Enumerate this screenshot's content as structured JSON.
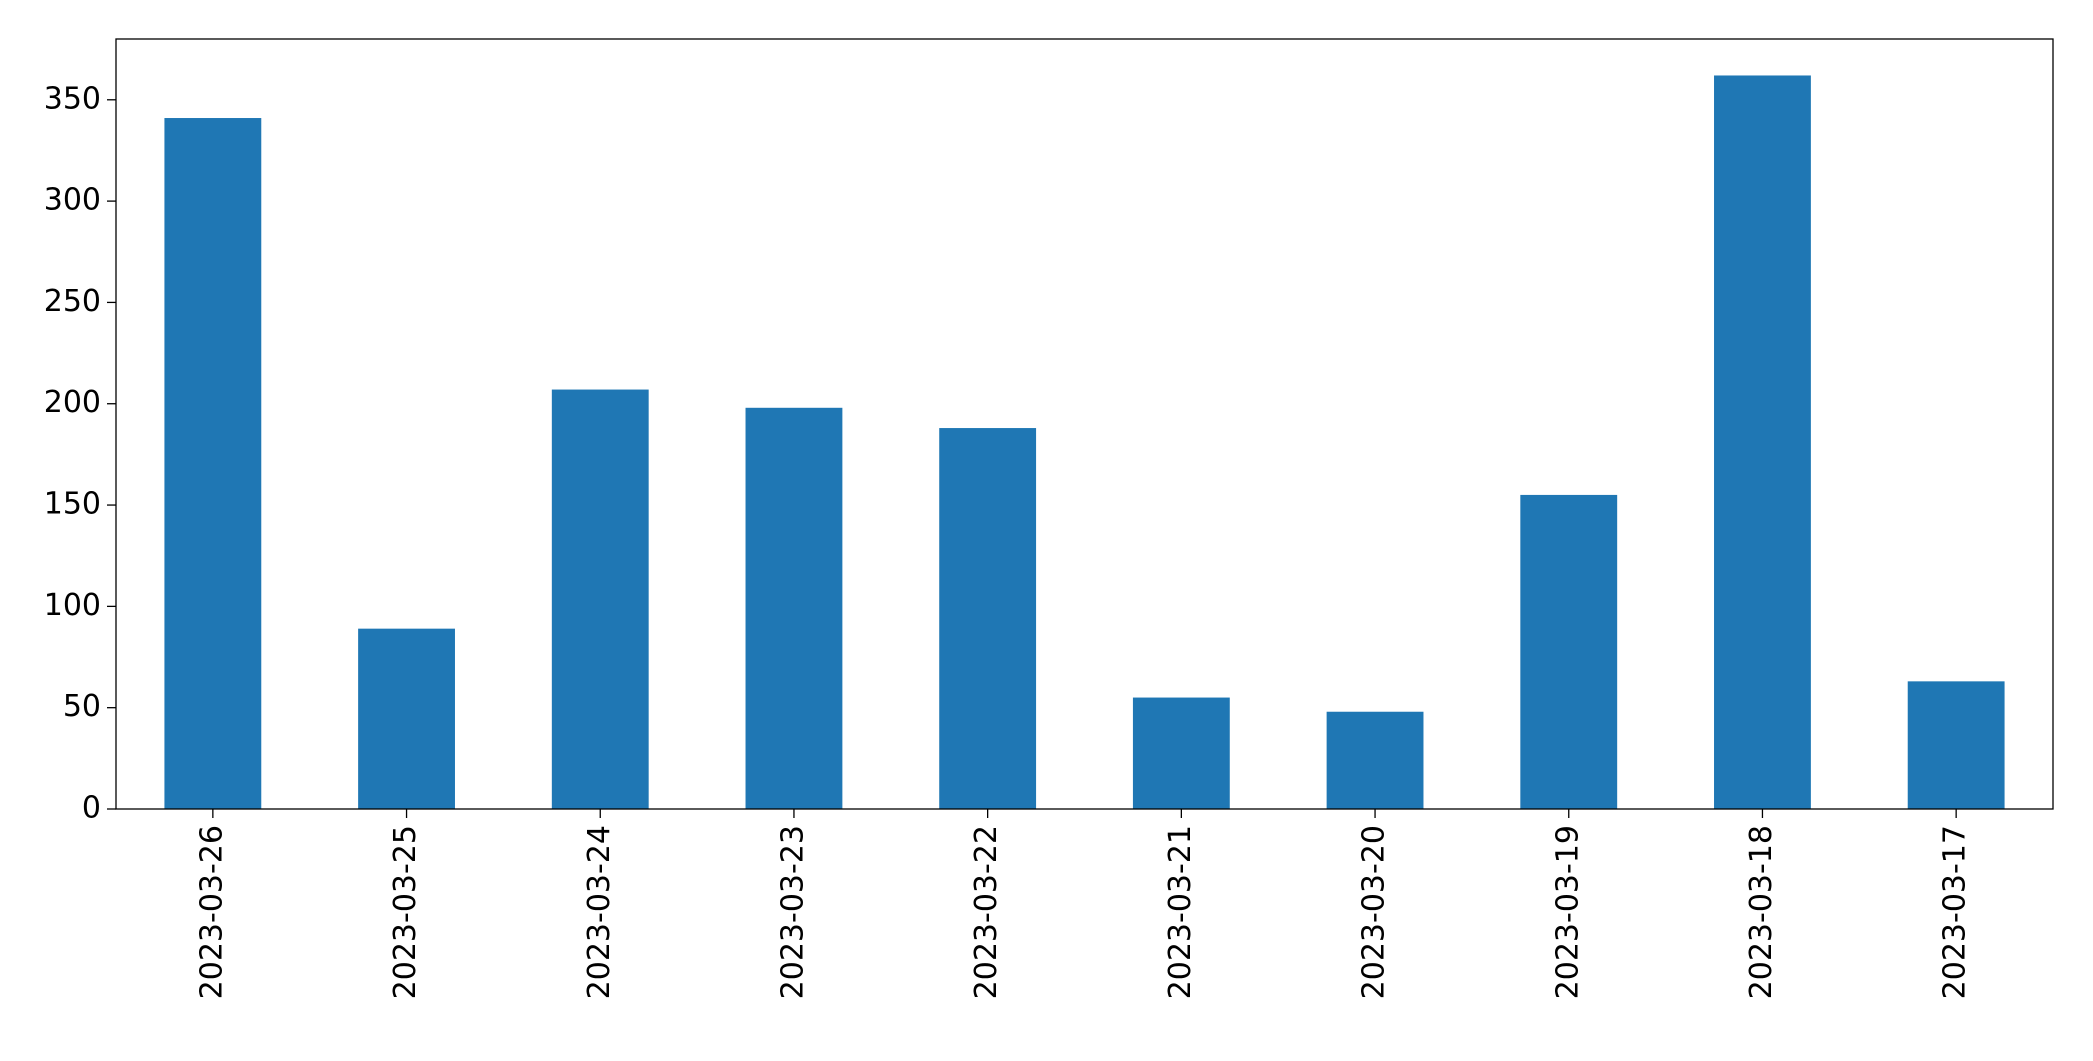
{
  "chart_data": {
    "type": "bar",
    "categories": [
      "2023-03-26",
      "2023-03-25",
      "2023-03-24",
      "2023-03-23",
      "2023-03-22",
      "2023-03-21",
      "2023-03-20",
      "2023-03-19",
      "2023-03-18",
      "2023-03-17"
    ],
    "values": [
      341,
      89,
      207,
      198,
      188,
      55,
      48,
      155,
      362,
      63
    ],
    "color": "#1f77b4",
    "ylim": [
      0,
      380
    ],
    "yticks": [
      0,
      50,
      100,
      150,
      200,
      250,
      300,
      350
    ],
    "grid": false
  }
}
